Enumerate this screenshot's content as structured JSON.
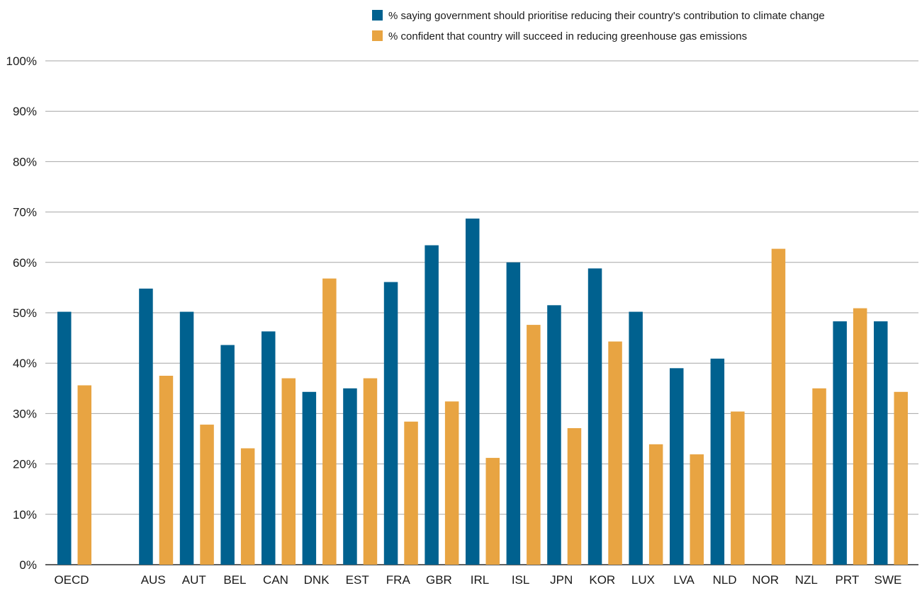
{
  "colors": {
    "series1": "#00618f",
    "series2": "#e8a442",
    "grid": "#a6a6a6",
    "axis": "#000000"
  },
  "chart_data": {
    "type": "bar",
    "categories": [
      "OECD",
      "",
      "AUS",
      "AUT",
      "BEL",
      "CAN",
      "DNK",
      "EST",
      "FRA",
      "GBR",
      "IRL",
      "ISL",
      "JPN",
      "KOR",
      "LUX",
      "LVA",
      "NLD",
      "NOR",
      "NZL",
      "PRT",
      "SWE"
    ],
    "series": [
      {
        "name": "% saying government should prioritise reducing their country's contribution to  climate change",
        "color": "#00618f",
        "values": [
          50.2,
          null,
          54.8,
          50.2,
          43.6,
          46.3,
          34.3,
          35.0,
          56.1,
          63.4,
          68.7,
          60.0,
          51.5,
          58.8,
          50.2,
          39.0,
          40.9,
          null,
          null,
          48.3,
          48.3
        ]
      },
      {
        "name": "% confident that country will succeed in reducing greenhouse gas emissions",
        "color": "#e8a442",
        "values": [
          35.6,
          null,
          37.5,
          27.8,
          23.1,
          37.0,
          56.8,
          37.0,
          28.4,
          32.4,
          21.2,
          47.6,
          27.1,
          44.3,
          23.9,
          21.9,
          30.4,
          62.7,
          35.0,
          50.9,
          34.3
        ]
      }
    ],
    "y_ticks": [
      "0%",
      "10%",
      "20%",
      "30%",
      "40%",
      "50%",
      "60%",
      "70%",
      "80%",
      "90%",
      "100%"
    ],
    "ylim": [
      0,
      100
    ],
    "grid": true,
    "legend_position": "top-right"
  }
}
